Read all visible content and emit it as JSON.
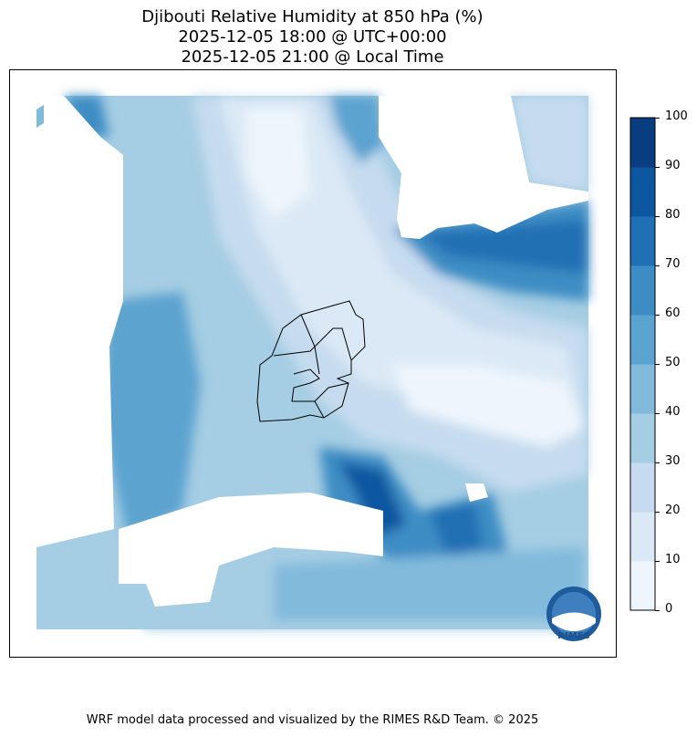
{
  "title": {
    "line1": "Djibouti Relative Humidity at 850 hPa (%)",
    "line2": "2025-12-05 18:00 @ UTC+00:00",
    "line3": "2025-12-05 21:00 @ Local Time"
  },
  "colorbar": {
    "ticks": [
      "0",
      "10",
      "20",
      "30",
      "40",
      "50",
      "60",
      "70",
      "80",
      "90",
      "100"
    ],
    "colors": [
      "#eef5fc",
      "#dbe9f6",
      "#c6dbef",
      "#a5cde3",
      "#81badb",
      "#5ba3d0",
      "#3d8dc4",
      "#2070b4",
      "#0d56a0",
      "#083d7f"
    ]
  },
  "logo": {
    "text": "RIMES"
  },
  "footer": "WRF model data processed and visualized by the RIMES R&D Team. © 2025"
}
